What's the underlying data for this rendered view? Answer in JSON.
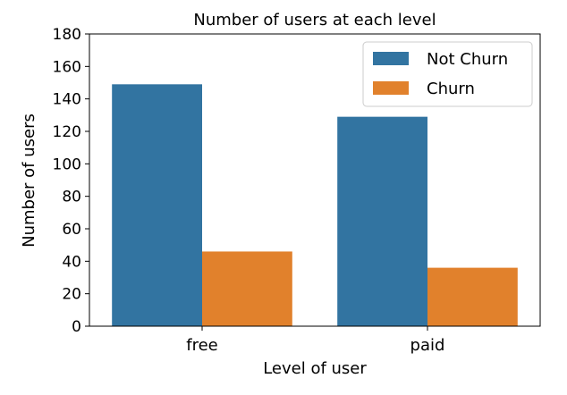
{
  "chart_data": {
    "type": "bar",
    "title": "Number of users at each level",
    "xlabel": "Level of user",
    "ylabel": "Number of users",
    "categories": [
      "free",
      "paid"
    ],
    "series": [
      {
        "name": "Not Churn",
        "values": [
          149,
          129
        ],
        "color": "#3274a1"
      },
      {
        "name": "Churn",
        "values": [
          46,
          36
        ],
        "color": "#e1812c"
      }
    ],
    "ylim": [
      0,
      180
    ],
    "yticks": [
      0,
      20,
      40,
      60,
      80,
      100,
      120,
      140,
      160,
      180
    ],
    "grid": false,
    "legend_position": "top-right"
  }
}
